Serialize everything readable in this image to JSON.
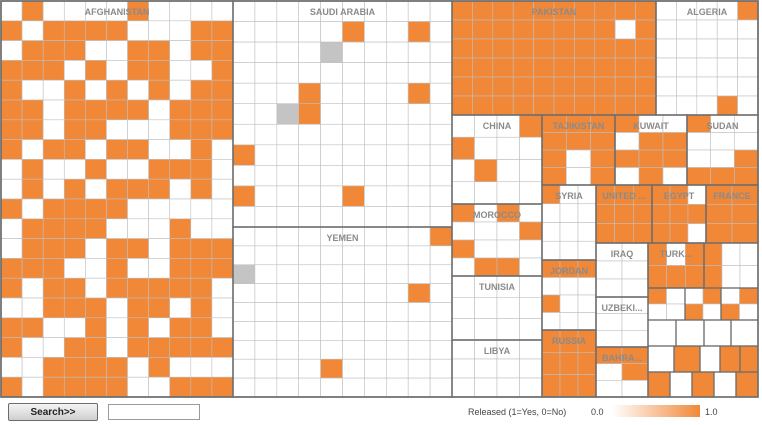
{
  "chart_data": {
    "type": "treemap",
    "cell_value_meaning": "Released (1=Yes, 0=No)",
    "countries": [
      {
        "name": "AFGHANISTAN",
        "label": "AFGHANISTAN",
        "released_share": 0.58
      },
      {
        "name": "SAUDI ARABIA",
        "label": "SAUDI ARABIA",
        "released_share": 0.1
      },
      {
        "name": "YEMEN",
        "label": "YEMEN",
        "released_share": 0.04
      },
      {
        "name": "PAKISTAN",
        "label": "PAKISTAN",
        "released_share": 0.92
      },
      {
        "name": "ALGERIA",
        "label": "ALGERIA",
        "released_share": 0.15
      },
      {
        "name": "CHINA",
        "label": "CHINA",
        "released_share": 0.4
      },
      {
        "name": "MOROCCO",
        "label": "MOROCCO",
        "released_share": 0.6
      },
      {
        "name": "TUNISIA",
        "label": "TUNISIA",
        "released_share": 0.0
      },
      {
        "name": "LIBYA",
        "label": "LIBYA",
        "released_share": 0.0
      },
      {
        "name": "TAJIKISTAN",
        "label": "TAJIKISTAN",
        "released_share": 0.7
      },
      {
        "name": "KUWAIT",
        "label": "KUWAIT",
        "released_share": 0.65
      },
      {
        "name": "SUDAN",
        "label": "SUDAN",
        "released_share": 0.4
      },
      {
        "name": "SYRIA",
        "label": "SYRIA",
        "released_share": 0.15
      },
      {
        "name": "JORDAN",
        "label": "JORDAN",
        "released_share": 0.5
      },
      {
        "name": "RUSSIA",
        "label": "RUSSIA",
        "released_share": 0.9
      },
      {
        "name": "UNITED ...",
        "label": "UNITED ...",
        "released_share": 0.85
      },
      {
        "name": "EGYPT",
        "label": "EGYPT",
        "released_share": 0.6
      },
      {
        "name": "FRANCE",
        "label": "FRANCE",
        "released_share": 1.0
      },
      {
        "name": "IRAQ",
        "label": "IRAQ",
        "released_share": 0.0
      },
      {
        "name": "TURK...",
        "label": "TURK...",
        "released_share": 0.7
      },
      {
        "name": "UZBEKI...",
        "label": "UZBEKI...",
        "released_share": 0.0
      },
      {
        "name": "BAHRA...",
        "label": "BAHRA...",
        "released_share": 0.5
      }
    ],
    "legend": {
      "title": "Released (1=Yes, 0=No)",
      "min": "0.0",
      "max": "1.0",
      "color_min": "#ffffff",
      "color_max": "#f08838"
    },
    "colors": {
      "released": "#f08838",
      "not_released": "#ffffff",
      "unknown": "#c4c4c4",
      "cell_border": "#bfbfbf",
      "group_border": "#6e6e6e"
    }
  },
  "controls": {
    "search_label": "Search>>",
    "search_value": ""
  }
}
